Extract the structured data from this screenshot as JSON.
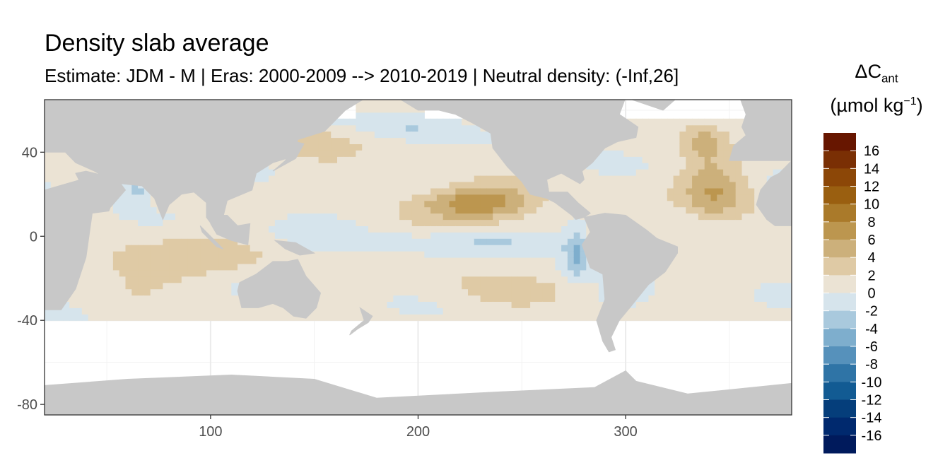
{
  "title": "Density slab average",
  "subtitle": "Estimate: JDM - M | Eras: 2000-2009 --> 2010-2019 | Neutral density: (-Inf,26]",
  "legend": {
    "title_symbol": "ΔC",
    "title_subscript": "ant",
    "title_unit_open": "(µmol kg",
    "title_unit_sup": "−1",
    "title_unit_close": ")",
    "labels": [
      "16",
      "14",
      "12",
      "10",
      "8",
      "6",
      "4",
      "2",
      "0",
      "-2",
      "-4",
      "-6",
      "-8",
      "-10",
      "-12",
      "-14",
      "-16"
    ],
    "colors": [
      "#671600",
      "#7a2f04",
      "#8c4707",
      "#9a5f10",
      "#aa7a2a",
      "#bc964f",
      "#ccb07b",
      "#dfcaa5",
      "#ebe3d4",
      "#d6e4ec",
      "#a9c9dd",
      "#7eaecd",
      "#5691bb",
      "#2f74a6",
      "#125b93",
      "#053e7b",
      "#00296e",
      "#001a5c"
    ]
  },
  "chart_data": {
    "type": "heatmap",
    "title": "Density slab average",
    "subtitle": "Estimate: JDM - M | Eras: 2000-2009 --> 2010-2019 | Neutral density: (-Inf,26]",
    "x_ticks": [
      100,
      200,
      300
    ],
    "y_ticks": [
      40,
      0,
      -40,
      -80
    ],
    "xlim": [
      20,
      380
    ],
    "ylim": [
      -85,
      65
    ],
    "land_color": "#c8c8c8",
    "no_data_color": "#ffffff",
    "colorbar_range": [
      -18,
      18
    ],
    "colorbar_step": 2,
    "grid": true
  }
}
